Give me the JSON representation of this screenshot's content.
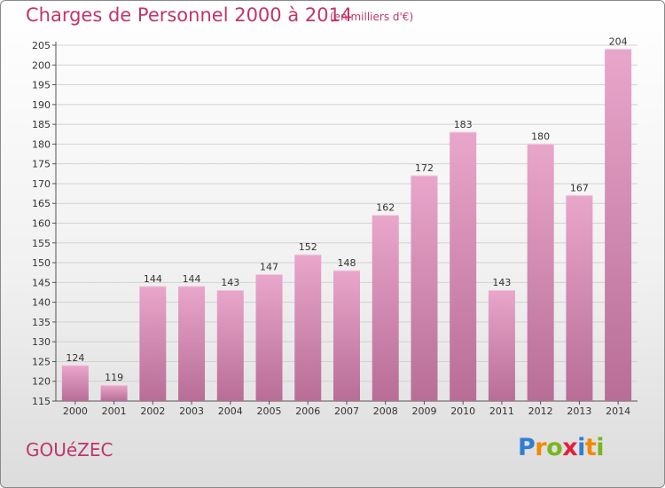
{
  "header": {
    "title": "Charges de Personnel 2000 à 2014",
    "subtitle": "(en milliers d'€)"
  },
  "footer": {
    "commune": "GOUéZEC",
    "logo_text": "Proxiti",
    "logo_letters": [
      {
        "ch": "P",
        "color": "#2f7fd0"
      },
      {
        "ch": "r",
        "color": "#f08a00"
      },
      {
        "ch": "o",
        "color": "#7ab51d"
      },
      {
        "ch": "x",
        "color": "#e3203b"
      },
      {
        "ch": "i",
        "color": "#2f7fd0"
      },
      {
        "ch": "t",
        "color": "#f08a00"
      },
      {
        "ch": "i",
        "color": "#7ab51d"
      }
    ]
  },
  "chart_data": {
    "type": "bar",
    "title": "Charges de Personnel 2000 à 2014",
    "subtitle": "(en milliers d'€)",
    "categories": [
      "2000",
      "2001",
      "2002",
      "2003",
      "2004",
      "2005",
      "2006",
      "2007",
      "2008",
      "2009",
      "2010",
      "2011",
      "2012",
      "2013",
      "2014"
    ],
    "values": [
      124,
      119,
      144,
      144,
      143,
      147,
      152,
      148,
      162,
      172,
      183,
      143,
      180,
      167,
      204
    ],
    "ylim": [
      115,
      205
    ],
    "yticks": [
      115,
      120,
      125,
      130,
      135,
      140,
      145,
      150,
      155,
      160,
      165,
      170,
      175,
      180,
      185,
      190,
      195,
      200,
      205
    ],
    "grid": true,
    "bar_color": "#d580ad",
    "text_color": "#c0356b"
  }
}
